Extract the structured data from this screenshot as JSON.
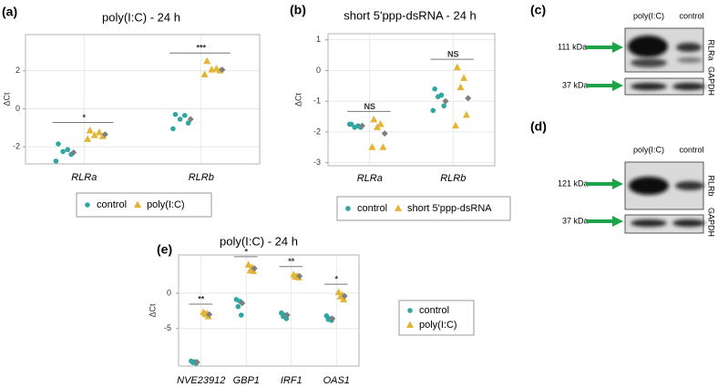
{
  "chart_data": [
    {
      "type": "strip",
      "panel_label": "(a)",
      "title": "poly(I:C) - 24 h",
      "y_label": "ΔCt",
      "categories": [
        "RLRa",
        "RLRb"
      ],
      "series": [
        {
          "name": "control",
          "color": "#2ea6a1",
          "shape": "circle",
          "values": [
            [
              -1.85,
              -2.15,
              -2.25,
              -2.4,
              -2.75
            ],
            [
              -0.3,
              -0.35,
              -0.55,
              -0.75,
              -1.05
            ]
          ]
        },
        {
          "name": "poly(I:C)",
          "color": "#e3b532",
          "shape": "triangle",
          "values": [
            [
              -1.15,
              -1.25,
              -1.4,
              -1.45,
              -1.6
            ],
            [
              2.5,
              2.1,
              2.05,
              2.0,
              1.8
            ]
          ]
        }
      ],
      "means": {
        "color": "#7f7f7f",
        "values": [
          [
            -2.3,
            -0.55
          ],
          [
            -1.35,
            2.05
          ]
        ]
      },
      "annotations": [
        "*",
        "***"
      ],
      "ylim": [
        -2.9,
        3.9
      ],
      "yticks": [
        -2,
        0,
        2
      ],
      "grid": true,
      "legend": "bottom"
    },
    {
      "type": "strip",
      "panel_label": "(b)",
      "title": "short 5'ppp-dsRNA - 24 h",
      "y_label": "ΔCt",
      "categories": [
        "RLRa",
        "RLRb"
      ],
      "series": [
        {
          "name": "control",
          "color": "#2ea6a1",
          "shape": "circle",
          "values": [
            [
              -1.75,
              -1.8,
              -1.85,
              -1.85,
              -1.75
            ],
            [
              -0.6,
              -0.8,
              -0.85,
              -1.15,
              -1.3
            ]
          ]
        },
        {
          "name": "short 5'ppp-dsRNA",
          "color": "#e3b532",
          "shape": "triangle",
          "values": [
            [
              -1.6,
              -1.75,
              -1.85,
              -2.5,
              -2.5
            ],
            [
              0.1,
              -0.25,
              -0.55,
              -1.45,
              -1.8
            ]
          ]
        }
      ],
      "means": {
        "color": "#7f7f7f",
        "values": [
          [
            -1.8,
            -1.0
          ],
          [
            -2.05,
            -0.9
          ]
        ]
      },
      "annotations": [
        "NS",
        "NS"
      ],
      "ylim": [
        -3.1,
        1.2
      ],
      "yticks": [
        -3,
        -2,
        -1,
        0,
        1
      ],
      "grid": true,
      "legend": "bottom"
    },
    {
      "type": "strip",
      "panel_label": "(e)",
      "title": "poly(I:C) - 24 h",
      "y_label": "ΔCt",
      "categories": [
        "NVE23912",
        "GBP1",
        "IRF1",
        "OAS1"
      ],
      "series": [
        {
          "name": "control",
          "color": "#2ea6a1",
          "shape": "circle",
          "values": [
            [
              -9.6,
              -9.7,
              -9.8,
              -9.9
            ],
            [
              -0.9,
              -1.15,
              -1.9,
              -3.1
            ],
            [
              -2.8,
              -3.1,
              -3.3,
              -3.6
            ],
            [
              -3.2,
              -3.6,
              -3.7,
              -3.85
            ]
          ]
        },
        {
          "name": "poly(I:C)",
          "color": "#e3b532",
          "shape": "triangle",
          "values": [
            [
              -2.7,
              -2.9,
              -3.0,
              -3.3
            ],
            [
              4.0,
              3.6,
              3.2,
              3.1
            ],
            [
              2.6,
              2.4,
              2.3,
              2.2
            ],
            [
              0.1,
              -0.3,
              -0.5,
              -0.9
            ]
          ]
        }
      ],
      "means": {
        "color": "#7f7f7f",
        "values": [
          [
            -9.75,
            -1.4,
            -3.1,
            -3.6
          ],
          [
            -3.0,
            3.5,
            2.4,
            -0.4
          ]
        ]
      },
      "annotations": [
        "**",
        "*",
        "**",
        "*"
      ],
      "ylim": [
        -10.3,
        5.4
      ],
      "yticks": [
        -5,
        0
      ],
      "grid": true,
      "legend": "right"
    }
  ],
  "blots": [
    {
      "panel_label": "(c)",
      "lanes": [
        "poly(I:C)",
        "control"
      ],
      "bands": [
        {
          "size": "111 kDa",
          "protein": "RLRa"
        },
        {
          "size": "37 kDa",
          "protein": "GAPDH"
        }
      ]
    },
    {
      "panel_label": "(d)",
      "lanes": [
        "poly(I:C)",
        "control"
      ],
      "bands": [
        {
          "size": "121 kDa",
          "protein": "RLRb"
        },
        {
          "size": "37 kDa",
          "protein": "GAPDH"
        }
      ]
    }
  ]
}
